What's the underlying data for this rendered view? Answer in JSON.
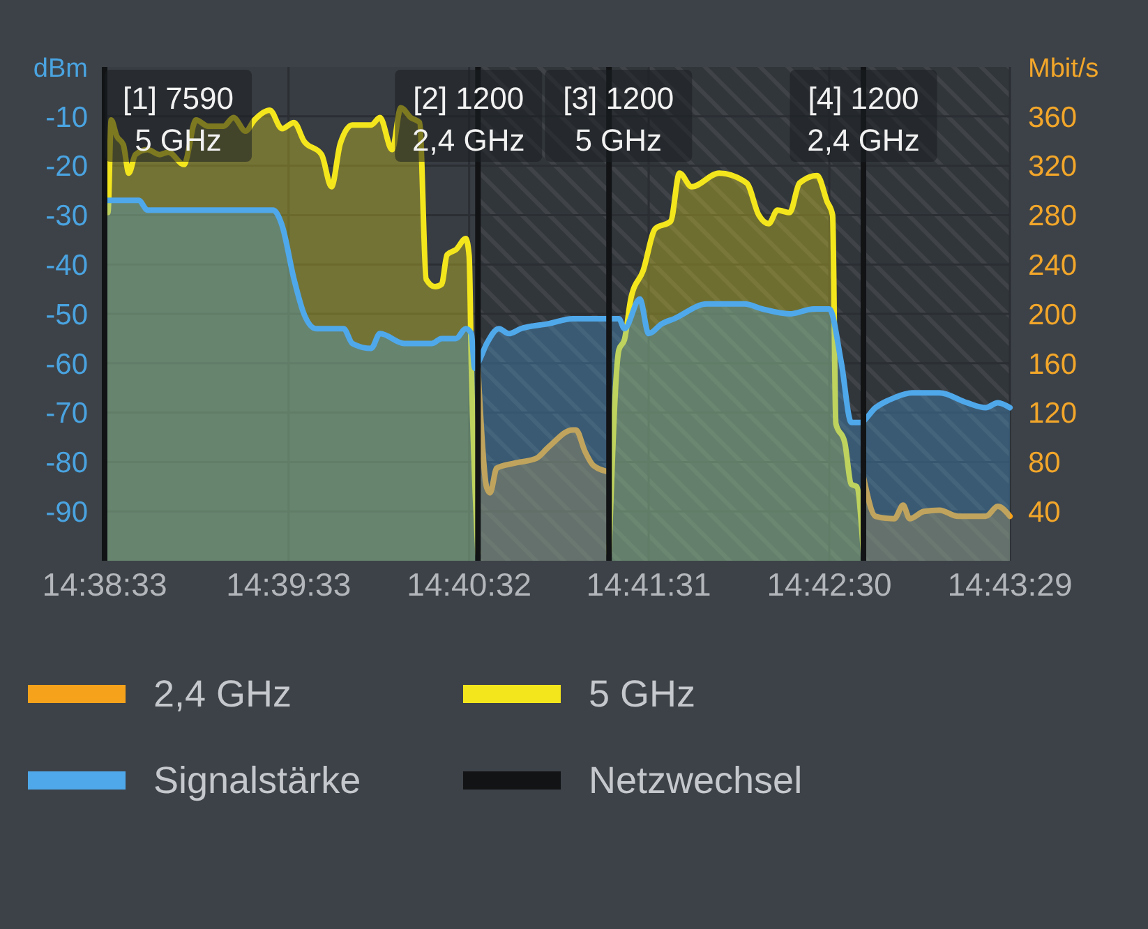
{
  "chart_data": {
    "type": "area",
    "ylabel": "dBm",
    "y2label": "Mbit/s",
    "xlim": [
      14.6425,
      14.7247
    ],
    "xticks": [
      {
        "value": 14.6425,
        "label": "14:38:33"
      },
      {
        "value": 14.6592,
        "label": "14:39:33"
      },
      {
        "value": 14.6756,
        "label": "14:40:32"
      },
      {
        "value": 14.6919,
        "label": "14:41:31"
      },
      {
        "value": 14.7083,
        "label": "14:42:30"
      },
      {
        "value": 14.7247,
        "label": "14:43:29"
      }
    ],
    "ylim": [
      -100,
      0
    ],
    "yticks": [
      -90,
      -80,
      -70,
      -60,
      -50,
      -40,
      -30,
      -20,
      -10
    ],
    "y2lim": [
      0,
      400
    ],
    "y2ticks": [
      40,
      80,
      120,
      160,
      200,
      240,
      280,
      320,
      360
    ],
    "grid": true,
    "legend": "bottom",
    "line_style": "solid",
    "series": [
      {
        "name": "2,4 GHz",
        "color": "#f7a21b",
        "axis": "y2",
        "x": [
          14.6764,
          14.6772,
          14.6775,
          14.6781,
          14.6797,
          14.6817,
          14.6828,
          14.685,
          14.6853,
          14.6861,
          14.6869,
          14.6883,
          14.6981,
          14.7114,
          14.7125,
          14.7142,
          14.715,
          14.7156,
          14.7169,
          14.7183,
          14.72,
          14.7225,
          14.7236,
          14.7247
        ],
        "values": [
          156,
          59,
          55,
          75,
          79,
          83,
          92,
          106,
          106,
          89,
          77,
          72,
          null,
          68,
          36,
          34,
          45,
          34,
          40,
          41,
          36,
          36,
          44,
          36
        ]
      },
      {
        "name": "5 GHz",
        "color": "#f4e61d",
        "axis": "y2",
        "x": [
          14.6425,
          14.6428,
          14.6431,
          14.6436,
          14.6442,
          14.6447,
          14.6453,
          14.6464,
          14.6475,
          14.6483,
          14.6497,
          14.6508,
          14.6519,
          14.6533,
          14.6542,
          14.6553,
          14.6561,
          14.6575,
          14.6586,
          14.6597,
          14.6606,
          14.6622,
          14.6631,
          14.6639,
          14.665,
          14.6667,
          14.6675,
          14.6686,
          14.6694,
          14.6703,
          14.6711,
          14.6717,
          14.6725,
          14.6731,
          14.6736,
          14.6744,
          14.6753,
          14.6756,
          14.6758,
          14.6764,
          14.6828,
          14.6883,
          14.6892,
          14.6897,
          14.6903,
          14.6914,
          14.6925,
          14.6939,
          14.6947,
          14.6958,
          14.6983,
          14.7008,
          14.7019,
          14.7028,
          14.7036,
          14.7047,
          14.7056,
          14.7072,
          14.7081,
          14.7086,
          14.7089,
          14.7097,
          14.7103,
          14.7108,
          14.7114
        ],
        "values": [
          290,
          282,
          357,
          344,
          337,
          314,
          329,
          333,
          329,
          331,
          321,
          357,
          352,
          352,
          359,
          348,
          357,
          365,
          350,
          355,
          340,
          329,
          303,
          338,
          353,
          353,
          359,
          333,
          367,
          359,
          355,
          228,
          222,
          224,
          248,
          252,
          261,
          247,
          157,
          6,
          null,
          6,
          171,
          179,
          213,
          235,
          269,
          275,
          314,
          303,
          314,
          306,
          280,
          273,
          284,
          282,
          306,
          312,
          291,
          280,
          111,
          96,
          62,
          60,
          6
        ]
      },
      {
        "name": "Signalstärke",
        "type": "line",
        "color": "#4fa8ea",
        "lower": [
          -100,
          -100,
          -100,
          -100,
          -100,
          -100,
          -100,
          -100,
          -100,
          -100,
          -100,
          -100,
          -100,
          -100,
          -100,
          -100,
          -100,
          -100,
          -100,
          -100,
          -100,
          -100,
          -100,
          -100,
          -100,
          -100,
          -100,
          -100,
          -100,
          -100,
          -100,
          -100,
          -100,
          -100,
          -100,
          -100,
          -100,
          -100,
          -100,
          -100,
          -100,
          -100,
          -100,
          -100,
          -100,
          -100,
          -100,
          -100,
          -100,
          -100
        ],
        "upper": [
          -27,
          -27,
          -29,
          -29,
          -32,
          -43,
          -50,
          -53,
          -53,
          -56,
          -57,
          -54,
          -56,
          -56,
          -55,
          -55,
          -53,
          -54,
          -61,
          -60,
          -56,
          -53,
          -54,
          -53,
          -52,
          -51,
          -51,
          -51,
          -53,
          -47,
          -54,
          -52,
          -51,
          -48,
          -48,
          -49,
          -50,
          -49,
          -49,
          -60,
          -72,
          -72,
          -69,
          -67,
          -66,
          -66,
          -68,
          -69,
          -68,
          -69
        ],
        "x": [
          14.6425,
          14.6456,
          14.6464,
          14.6578,
          14.6586,
          14.6597,
          14.6606,
          14.6617,
          14.6642,
          14.665,
          14.6667,
          14.6675,
          14.6697,
          14.6722,
          14.6731,
          14.6744,
          14.6753,
          14.6758,
          14.6761,
          14.6764,
          14.6772,
          14.6783,
          14.6792,
          14.6803,
          14.6828,
          14.685,
          14.6858,
          14.6892,
          14.6897,
          14.6911,
          14.6919,
          14.6931,
          14.6942,
          14.6972,
          14.7006,
          14.7022,
          14.7047,
          14.7069,
          14.7083,
          14.7094,
          14.7103,
          14.7111,
          14.7125,
          14.7142,
          14.7158,
          14.7183,
          14.7208,
          14.7225,
          14.7236,
          14.7247
        ],
        "values": [
          -27,
          -27,
          -29,
          -29,
          -32,
          -43,
          -50,
          -53,
          -53,
          -56,
          -57,
          -54,
          -56,
          -56,
          -55,
          -55,
          -53,
          -54,
          -61,
          -60,
          -56,
          -53,
          -54,
          -53,
          -52,
          -51,
          -51,
          -51,
          -53,
          -47,
          -54,
          -52,
          -51,
          -48,
          -48,
          -49,
          -50,
          -49,
          -49,
          -60,
          -72,
          -72,
          -69,
          -67,
          -66,
          -66,
          -68,
          -69,
          -68,
          -69
        ]
      }
    ],
    "ref_lines": [
      {
        "axis": "x",
        "value": 14.6425,
        "label": "[1] 7590\n5 GHz",
        "color": "#111315"
      },
      {
        "axis": "x",
        "value": 14.6764,
        "label": "[2] 1200\n2,4 GHz",
        "color": "#111315"
      },
      {
        "axis": "x",
        "value": 14.6883,
        "label": "[3] 1200\n5 GHz",
        "color": "#111315"
      },
      {
        "axis": "x",
        "value": 14.7114,
        "label": "[4] 1200\n2,4 GHz",
        "color": "#111315"
      }
    ],
    "bands": [
      {
        "axis": "x",
        "from": 14.6764,
        "to": 14.7247,
        "color": "#ffffff"
      }
    ],
    "annotations": [
      "Netzwechsel"
    ]
  }
}
